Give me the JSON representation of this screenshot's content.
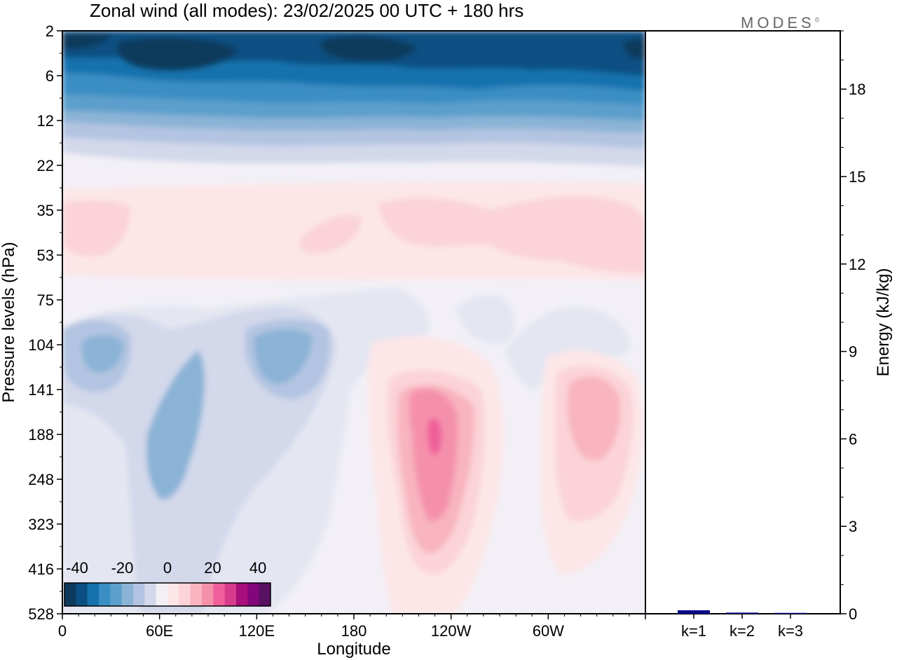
{
  "header": {
    "title": "Zonal wind (all modes):  23/02/2025  00 UTC  + 180 hrs",
    "logo_text": "MODES",
    "logo_mark": "©"
  },
  "chart_data": [
    {
      "type": "heatmap",
      "title": "Zonal wind (all modes):  23/02/2025  00 UTC  + 180 hrs",
      "xlabel": "Longitude",
      "ylabel": "Pressure levels (hPa)",
      "x_ticks": [
        "0",
        "60E",
        "120E",
        "180",
        "120W",
        "60W"
      ],
      "x_tick_degrees": [
        0,
        60,
        120,
        180,
        240,
        300
      ],
      "xlim": [
        0,
        360
      ],
      "y_ticks": [
        "2",
        "6",
        "12",
        "22",
        "35",
        "53",
        "75",
        "104",
        "141",
        "188",
        "248",
        "323",
        "416",
        "528"
      ],
      "colorbar": {
        "tick_labels": [
          "-40",
          "-20",
          "0",
          "20",
          "40"
        ],
        "colors": [
          "#0d3a5c",
          "#0b4f82",
          "#1572ad",
          "#3a8ec4",
          "#5c9fcc",
          "#8bb3d6",
          "#b2c4e1",
          "#d3d8eb",
          "#f2f0f6",
          "#fde6e8",
          "#fbd3d8",
          "#f8b4c0",
          "#f590ac",
          "#ef5f9a",
          "#d63c8b",
          "#a90e7d",
          "#83077a",
          "#581062"
        ]
      }
    },
    {
      "type": "bar",
      "ylabel": "Energy (kJ/kg)",
      "categories": [
        "k=1",
        "k=2",
        "k=3"
      ],
      "values": [
        0.12,
        0.04,
        0.03
      ],
      "ylim": [
        0,
        20
      ],
      "y_ticks": [
        "0",
        "3",
        "6",
        "9",
        "12",
        "15",
        "18"
      ],
      "bar_color": "#0a0a8a"
    }
  ]
}
